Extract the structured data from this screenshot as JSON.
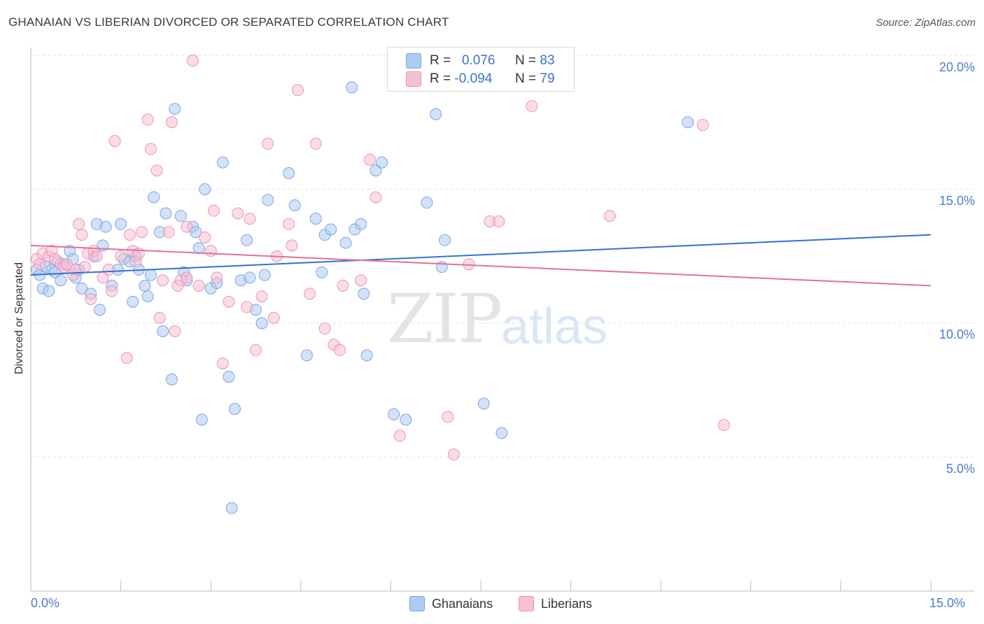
{
  "title": "GHANAIAN VS LIBERIAN DIVORCED OR SEPARATED CORRELATION CHART",
  "source": "Source: ZipAtlas.com",
  "watermark": {
    "zip": "ZIP",
    "atlas": "atlas"
  },
  "legend": {
    "rows": [
      {
        "r_label": "R =",
        "r_value": "0.076",
        "n_label": "N =",
        "n_value": "83"
      },
      {
        "r_label": "R =",
        "r_value": "-0.094",
        "n_label": "N =",
        "n_value": "79"
      }
    ]
  },
  "bottom_legend": [
    "Ghanaians",
    "Liberians"
  ],
  "colors": {
    "ghanaians_fill": "#aecbf2",
    "ghanaians_stroke": "#7aa6e2",
    "ghanaians_line": "#2f74d0",
    "liberians_fill": "#f7bfd3",
    "liberians_stroke": "#ec93b4",
    "liberians_line": "#e0709a",
    "grid": "#e2e2e2",
    "axis_text": "#4a7bd0"
  },
  "chart_data": {
    "type": "scatter",
    "title": "GHANAIAN VS LIBERIAN DIVORCED OR SEPARATED CORRELATION CHART",
    "xlabel": "",
    "ylabel": "Divorced or Separated",
    "xlim": [
      0,
      15
    ],
    "ylim": [
      0,
      20
    ],
    "x_tick_labels": [
      "0.0%",
      "15.0%"
    ],
    "y_tick_labels": [
      "20.0%",
      "15.0%",
      "10.0%",
      "5.0%"
    ],
    "y_ticks": [
      20,
      15,
      10,
      5
    ],
    "grid": true,
    "legend_position": "top-center",
    "series": [
      {
        "name": "Ghanaians",
        "r": 0.076,
        "n": 83,
        "trend": [
          [
            0,
            11.8
          ],
          [
            15,
            13.3
          ]
        ],
        "points": [
          [
            0.1,
            12.0
          ],
          [
            0.15,
            11.8
          ],
          [
            0.2,
            11.3
          ],
          [
            0.3,
            11.2
          ],
          [
            0.25,
            12.1
          ],
          [
            0.35,
            12.0
          ],
          [
            0.4,
            11.9
          ],
          [
            0.45,
            12.3
          ],
          [
            0.5,
            11.6
          ],
          [
            0.55,
            12.2
          ],
          [
            0.65,
            12.7
          ],
          [
            0.7,
            12.4
          ],
          [
            0.75,
            11.7
          ],
          [
            0.8,
            12.0
          ],
          [
            0.85,
            11.3
          ],
          [
            1.0,
            11.1
          ],
          [
            1.05,
            12.5
          ],
          [
            1.1,
            13.7
          ],
          [
            1.15,
            10.5
          ],
          [
            1.2,
            12.9
          ],
          [
            1.25,
            13.6
          ],
          [
            1.35,
            11.4
          ],
          [
            1.45,
            12.0
          ],
          [
            1.5,
            13.7
          ],
          [
            1.55,
            12.4
          ],
          [
            1.65,
            12.3
          ],
          [
            1.7,
            10.8
          ],
          [
            1.75,
            12.5
          ],
          [
            1.8,
            12.0
          ],
          [
            1.9,
            11.4
          ],
          [
            1.95,
            11.0
          ],
          [
            2.0,
            11.8
          ],
          [
            2.05,
            14.7
          ],
          [
            2.15,
            13.4
          ],
          [
            2.2,
            9.7
          ],
          [
            2.25,
            14.1
          ],
          [
            2.35,
            7.9
          ],
          [
            2.4,
            18.0
          ],
          [
            2.5,
            14.0
          ],
          [
            2.55,
            11.9
          ],
          [
            2.6,
            11.6
          ],
          [
            2.7,
            13.6
          ],
          [
            2.75,
            13.4
          ],
          [
            2.8,
            12.8
          ],
          [
            2.85,
            6.4
          ],
          [
            2.9,
            15.0
          ],
          [
            3.0,
            11.3
          ],
          [
            3.1,
            11.5
          ],
          [
            3.2,
            16.0
          ],
          [
            3.3,
            8.0
          ],
          [
            3.35,
            3.1
          ],
          [
            3.4,
            6.8
          ],
          [
            3.5,
            11.6
          ],
          [
            3.6,
            13.1
          ],
          [
            3.65,
            11.7
          ],
          [
            3.75,
            10.5
          ],
          [
            3.85,
            10.0
          ],
          [
            3.9,
            11.8
          ],
          [
            3.95,
            14.6
          ],
          [
            4.3,
            15.6
          ],
          [
            4.4,
            14.4
          ],
          [
            4.6,
            8.8
          ],
          [
            4.75,
            13.9
          ],
          [
            4.85,
            11.9
          ],
          [
            4.9,
            13.3
          ],
          [
            5.0,
            13.5
          ],
          [
            5.25,
            13.0
          ],
          [
            5.4,
            13.5
          ],
          [
            5.5,
            13.7
          ],
          [
            5.55,
            11.1
          ],
          [
            5.6,
            8.8
          ],
          [
            5.35,
            18.8
          ],
          [
            5.75,
            15.7
          ],
          [
            5.85,
            16.0
          ],
          [
            6.05,
            6.6
          ],
          [
            6.25,
            6.4
          ],
          [
            6.6,
            14.5
          ],
          [
            6.75,
            17.8
          ],
          [
            6.85,
            12.1
          ],
          [
            6.9,
            13.1
          ],
          [
            7.55,
            7.0
          ],
          [
            7.85,
            5.9
          ],
          [
            10.95,
            17.5
          ]
        ]
      },
      {
        "name": "Liberians",
        "r": -0.094,
        "n": 79,
        "trend": [
          [
            0,
            12.9
          ],
          [
            15,
            11.4
          ]
        ],
        "points": [
          [
            0.1,
            12.4
          ],
          [
            0.15,
            12.2
          ],
          [
            0.2,
            12.6
          ],
          [
            0.3,
            12.5
          ],
          [
            0.35,
            12.7
          ],
          [
            0.4,
            12.4
          ],
          [
            0.5,
            12.2
          ],
          [
            0.55,
            12.1
          ],
          [
            0.6,
            12.2
          ],
          [
            0.7,
            11.8
          ],
          [
            0.75,
            12.0
          ],
          [
            0.8,
            13.7
          ],
          [
            0.85,
            13.3
          ],
          [
            0.95,
            12.6
          ],
          [
            1.0,
            10.9
          ],
          [
            1.05,
            12.7
          ],
          [
            1.1,
            12.5
          ],
          [
            1.2,
            11.7
          ],
          [
            1.3,
            12.0
          ],
          [
            1.35,
            11.2
          ],
          [
            1.4,
            16.8
          ],
          [
            1.5,
            12.5
          ],
          [
            1.6,
            8.7
          ],
          [
            1.65,
            13.3
          ],
          [
            1.7,
            12.7
          ],
          [
            1.75,
            12.3
          ],
          [
            1.85,
            13.4
          ],
          [
            1.95,
            17.6
          ],
          [
            2.0,
            16.5
          ],
          [
            2.1,
            15.7
          ],
          [
            2.15,
            10.2
          ],
          [
            2.2,
            11.6
          ],
          [
            2.3,
            13.4
          ],
          [
            2.35,
            17.5
          ],
          [
            2.4,
            9.7
          ],
          [
            2.45,
            11.4
          ],
          [
            2.5,
            11.6
          ],
          [
            2.6,
            11.7
          ],
          [
            2.7,
            19.8
          ],
          [
            2.8,
            11.4
          ],
          [
            2.9,
            13.2
          ],
          [
            3.0,
            12.7
          ],
          [
            3.05,
            14.2
          ],
          [
            3.1,
            11.7
          ],
          [
            3.2,
            8.5
          ],
          [
            3.3,
            10.8
          ],
          [
            3.45,
            14.1
          ],
          [
            3.6,
            10.6
          ],
          [
            3.65,
            13.9
          ],
          [
            3.75,
            9.0
          ],
          [
            3.85,
            11.0
          ],
          [
            3.95,
            16.7
          ],
          [
            4.05,
            10.2
          ],
          [
            4.1,
            12.5
          ],
          [
            4.3,
            13.7
          ],
          [
            4.35,
            12.9
          ],
          [
            4.45,
            18.7
          ],
          [
            4.65,
            11.1
          ],
          [
            4.75,
            16.7
          ],
          [
            4.9,
            9.8
          ],
          [
            5.05,
            9.2
          ],
          [
            5.15,
            9.0
          ],
          [
            5.2,
            11.4
          ],
          [
            5.5,
            11.6
          ],
          [
            5.65,
            16.1
          ],
          [
            5.75,
            14.7
          ],
          [
            6.15,
            5.8
          ],
          [
            6.95,
            6.5
          ],
          [
            7.05,
            5.1
          ],
          [
            7.3,
            12.2
          ],
          [
            7.65,
            13.8
          ],
          [
            7.8,
            13.8
          ],
          [
            8.35,
            18.1
          ],
          [
            9.65,
            14.0
          ],
          [
            11.2,
            17.4
          ],
          [
            11.55,
            6.2
          ],
          [
            1.8,
            12.6
          ],
          [
            2.6,
            13.6
          ],
          [
            0.9,
            12.1
          ]
        ]
      }
    ]
  }
}
